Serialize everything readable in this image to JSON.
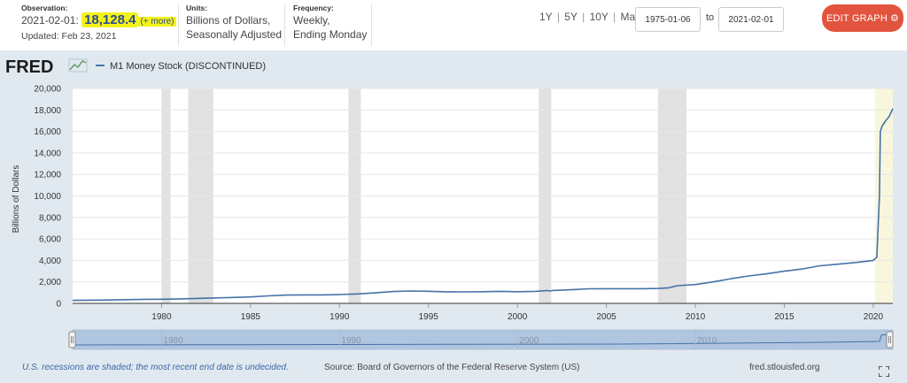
{
  "header": {
    "observation_label": "Observation:",
    "observation_date": "2021-02-01:",
    "observation_value": "18,128.4",
    "observation_more": "(+ more)",
    "updated": "Updated: Feb 23, 2021",
    "units_label": "Units:",
    "units_line1": "Billions of Dollars,",
    "units_line2": "Seasonally Adjusted",
    "frequency_label": "Frequency:",
    "frequency_line1": "Weekly,",
    "frequency_line2": "Ending Monday",
    "range_links": [
      "1Y",
      "5Y",
      "10Y",
      "Max"
    ],
    "date_start": "1975-01-06",
    "to_label": "to",
    "date_end": "2021-02-01",
    "edit_button": "EDIT GRAPH"
  },
  "brand": {
    "logo_text": "FRED"
  },
  "footer": {
    "recession_note": "U.S. recessions are shaded; the most recent end date is undecided.",
    "source": "Source: Board of Governors of the Federal Reserve System (US)",
    "site": "fred.stlouisfed.org"
  },
  "colors": {
    "line": "#4572a7",
    "recession": "#e1e1e1",
    "accent": "#e2543e",
    "highlight": "#f5f21a"
  },
  "chart_data": {
    "type": "line",
    "title": "",
    "ylabel": "Billions of Dollars",
    "xlim": [
      1975.0,
      2021.1
    ],
    "ylim": [
      0,
      20000
    ],
    "grid": "horizontal",
    "legend": "top-left",
    "yticks": [
      0,
      2000,
      4000,
      6000,
      8000,
      10000,
      12000,
      14000,
      16000,
      18000,
      20000
    ],
    "ytick_labels": [
      "0",
      "2,000",
      "4,000",
      "6,000",
      "8,000",
      "10,000",
      "12,000",
      "14,000",
      "16,000",
      "18,000",
      "20,000"
    ],
    "xticks": [
      1980,
      1985,
      1990,
      1995,
      2000,
      2005,
      2010,
      2015,
      2020
    ],
    "xtick_labels": [
      "1980",
      "1985",
      "1990",
      "1995",
      "2000",
      "2005",
      "2010",
      "2015",
      "2020"
    ],
    "recessions": [
      [
        1980.0,
        1980.5
      ],
      [
        1981.5,
        1982.9
      ],
      [
        1990.5,
        1991.2
      ],
      [
        2001.2,
        2001.9
      ],
      [
        2007.9,
        2009.5
      ]
    ],
    "undecided_recession_start": 2020.1,
    "series": [
      {
        "name": "M1 Money Stock (DISCONTINUED)",
        "x": [
          1975.0,
          1977.0,
          1979.0,
          1980.0,
          1981.0,
          1982.0,
          1983.0,
          1984.0,
          1985.0,
          1986.0,
          1987.0,
          1988.0,
          1989.0,
          1990.0,
          1991.0,
          1992.0,
          1993.0,
          1994.0,
          1995.0,
          1996.0,
          1997.0,
          1998.0,
          1999.0,
          2000.0,
          2001.0,
          2001.7,
          2001.8,
          2002.0,
          2003.0,
          2004.0,
          2005.0,
          2006.0,
          2007.0,
          2008.0,
          2008.5,
          2009.0,
          2010.0,
          2011.0,
          2011.5,
          2012.0,
          2013.0,
          2014.0,
          2015.0,
          2016.0,
          2017.0,
          2018.0,
          2019.0,
          2020.0,
          2020.2,
          2020.35,
          2020.4,
          2020.5,
          2020.7,
          2020.9,
          2021.1
        ],
        "values": [
          280,
          310,
          375,
          390,
          420,
          460,
          510,
          550,
          600,
          700,
          770,
          790,
          790,
          820,
          880,
          980,
          1100,
          1150,
          1130,
          1080,
          1070,
          1090,
          1120,
          1090,
          1120,
          1200,
          1150,
          1200,
          1270,
          1360,
          1370,
          1370,
          1370,
          1390,
          1450,
          1650,
          1750,
          2000,
          2150,
          2300,
          2550,
          2750,
          3000,
          3200,
          3500,
          3650,
          3800,
          4000,
          4300,
          10000,
          16000,
          16500,
          17000,
          17400,
          18128.4
        ]
      }
    ]
  }
}
